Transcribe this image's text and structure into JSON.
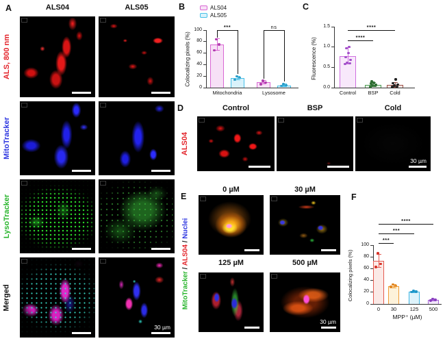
{
  "panels": {
    "A": {
      "letter": "A",
      "column_titles": [
        "ALS04",
        "ALS05"
      ],
      "row_labels": [
        {
          "text": "ALS, 800 nm",
          "color": "#e3242b"
        },
        {
          "text": "MitoTracker",
          "color": "#2b34e0"
        },
        {
          "text": "LysoTracker",
          "color": "#28b52c"
        },
        {
          "text": "Merged",
          "color": "#111111"
        }
      ],
      "scale_bar_text": "30 µm"
    },
    "B": {
      "letter": "B",
      "legend": [
        {
          "label": "ALS04",
          "stroke": "#d966d3",
          "fill": "#f7e0f6"
        },
        {
          "label": "ALS05",
          "stroke": "#45bfe8",
          "fill": "#d9f2fb"
        }
      ]
    },
    "C": {
      "letter": "C"
    },
    "D": {
      "letter": "D",
      "column_titles": [
        "Control",
        "BSP",
        "Cold"
      ],
      "row_label": {
        "text": "ALS04",
        "color": "#e3242b"
      },
      "scale_bar_text": "30 µm"
    },
    "E": {
      "letter": "E",
      "column_titles": [
        "0 µM",
        "30 µM",
        "125 µM",
        "500 µM"
      ],
      "row_label_parts": [
        {
          "text": "MitoTracker",
          "color": "#28b52c"
        },
        {
          "text": " / ",
          "color": "#111111"
        },
        {
          "text": "ALS04",
          "color": "#e3242b"
        },
        {
          "text": " / ",
          "color": "#111111"
        },
        {
          "text": "Nuclei",
          "color": "#2b34e0"
        }
      ],
      "scale_bar_text": "30 µm"
    },
    "F": {
      "letter": "F"
    }
  },
  "chart_data": [
    {
      "id": "B",
      "type": "bar",
      "ylabel": "Colocalizing pixels (%)",
      "ylim": [
        0,
        100
      ],
      "yticks": [
        0,
        20,
        40,
        60,
        80,
        100
      ],
      "group_labels": [
        "Mitochondria",
        "Lysosome"
      ],
      "series": [
        {
          "name": "ALS04",
          "color": "#d966d3",
          "fill": "#f7e0f6",
          "dot": "#b13cae",
          "values": [
            75,
            9
          ],
          "err": [
            10,
            3
          ],
          "points": [
            [
              65,
              75,
              84
            ],
            [
              6,
              9,
              12
            ]
          ]
        },
        {
          "name": "ALS05",
          "color": "#45bfe8",
          "fill": "#d9f2fb",
          "dot": "#2b9ec9",
          "values": [
            17,
            4
          ],
          "err": [
            3,
            2
          ],
          "points": [
            [
              14,
              17,
              20
            ],
            [
              3,
              4,
              6
            ]
          ]
        }
      ],
      "annotations": [
        {
          "text": "***",
          "between": [
            "ALS04 Mitochondria",
            "ALS05 Mitochondria"
          ]
        },
        {
          "text": "ns",
          "between": [
            "ALS04 Lysosome",
            "ALS05 Lysosome"
          ]
        }
      ],
      "legend_position": "top-left",
      "grid": false
    },
    {
      "id": "C",
      "type": "bar",
      "ylabel": "Fluorescence (%)",
      "ylim": [
        0,
        1.5
      ],
      "yticks": [
        "0.0",
        "0.5",
        "1.0",
        "1.5"
      ],
      "categories": [
        "Control",
        "BSP",
        "Cold"
      ],
      "bars": [
        {
          "value": 0.78,
          "err": 0.2,
          "stroke": "#cf6ee0",
          "fill": "#f8e8fb",
          "dot": "#a14fc9",
          "points": [
            0.58,
            0.6,
            0.62,
            0.68,
            0.75,
            0.85,
            0.97,
            1.0
          ]
        },
        {
          "value": 0.07,
          "err": 0.05,
          "stroke": "#4d9b52",
          "fill": "#e4f2e4",
          "dot": "#2f6e33",
          "points": [
            0.02,
            0.04,
            0.05,
            0.07,
            0.1,
            0.12,
            0.15
          ]
        },
        {
          "value": 0.07,
          "err": 0.06,
          "stroke": "#9a4f45",
          "fill": "#f6e6e3",
          "dot": "#222222",
          "points": [
            0.02,
            0.03,
            0.05,
            0.08,
            0.11,
            0.2
          ]
        }
      ],
      "annotations": [
        {
          "text": "****",
          "between": [
            "Control",
            "Cold"
          ]
        },
        {
          "text": "****",
          "between": [
            "Control",
            "BSP"
          ]
        }
      ],
      "grid": false
    },
    {
      "id": "F",
      "type": "bar",
      "ylabel": "Colocalizing pixels (%)",
      "xlabel": "MPP⁺ (µM)",
      "ylim": [
        0,
        100
      ],
      "yticks": [
        0,
        20,
        40,
        60,
        80,
        100
      ],
      "categories": [
        "0",
        "30",
        "125",
        "500"
      ],
      "bars": [
        {
          "value": 73,
          "err": 11,
          "stroke": "#e4594f",
          "fill": "#fbe9e6",
          "dot": "#d63227",
          "points": [
            63,
            68,
            86
          ]
        },
        {
          "value": 30,
          "err": 3,
          "stroke": "#f09d35",
          "fill": "#fdf2da",
          "dot": "#e0851f",
          "points": [
            29,
            31,
            33
          ]
        },
        {
          "value": 21,
          "err": 2,
          "stroke": "#3db4e2",
          "fill": "#def3fb",
          "dot": "#1f96c7",
          "points": [
            20,
            21,
            22
          ]
        },
        {
          "value": 7,
          "err": 2,
          "stroke": "#a665d6",
          "fill": "#f2e7fa",
          "dot": "#8a3fc0",
          "points": [
            6,
            7,
            9
          ]
        }
      ],
      "annotations": [
        {
          "text": "***",
          "between": [
            "0",
            "30"
          ]
        },
        {
          "text": "***",
          "between": [
            "0",
            "125"
          ]
        },
        {
          "text": "****",
          "between": [
            "0",
            "500"
          ]
        }
      ],
      "grid": false
    }
  ]
}
